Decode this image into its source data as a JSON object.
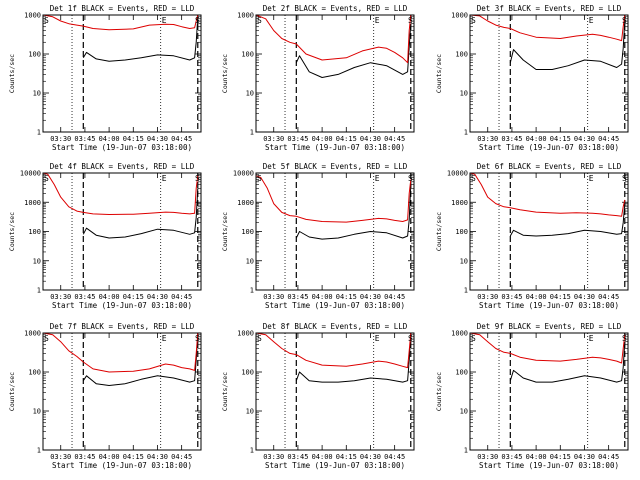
{
  "chart_data": [
    {
      "type": "line",
      "title": "Det 1f BLACK = Events, RED = LLD",
      "xlabel": "Start Time (19-Jun-07 03:18:00)",
      "ylabel": "Counts/sec",
      "yscale": "log",
      "ylim": [
        1,
        1000
      ],
      "xlim": [
        "03:19",
        "04:57"
      ],
      "xticks": [
        "03:30",
        "03:45",
        "04:00",
        "04:15",
        "04:30",
        "04:45"
      ],
      "yticks": [
        "1",
        "10",
        "100",
        "1000"
      ],
      "markers": {
        "S_left": "S",
        "E": "E",
        "S_right": "S"
      },
      "dotted_lines": [
        "03:37",
        "04:32"
      ],
      "dashed_lines": [
        "03:44",
        "04:55"
      ],
      "legend": "none",
      "grid": false,
      "series": [
        {
          "name": "BLACK",
          "color": "#000000",
          "x": [
            "03:44",
            "03:46",
            "03:52",
            "04:00",
            "04:10",
            "04:20",
            "04:30",
            "04:40",
            "04:50",
            "04:53",
            "04:54",
            "04:55"
          ],
          "y": [
            80,
            110,
            75,
            65,
            70,
            80,
            95,
            90,
            70,
            80,
            200,
            900
          ]
        },
        {
          "name": "RED",
          "color": "#dd0000",
          "x": [
            "03:19",
            "03:25",
            "03:30",
            "03:35",
            "03:40",
            "03:44",
            "03:50",
            "04:00",
            "04:15",
            "04:25",
            "04:35",
            "04:40",
            "04:45",
            "04:50",
            "04:53",
            "04:54",
            "04:55"
          ],
          "y": [
            1000,
            900,
            700,
            600,
            550,
            520,
            450,
            420,
            440,
            550,
            580,
            570,
            500,
            450,
            470,
            700,
            1000
          ]
        }
      ]
    },
    {
      "type": "line",
      "title": "Det 2f BLACK = Events, RED = LLD",
      "xlabel": "Start Time (19-Jun-07 03:18:00)",
      "ylabel": "Counts/sec",
      "yscale": "log",
      "ylim": [
        1,
        1000
      ],
      "xlim": [
        "03:19",
        "04:57"
      ],
      "xticks": [
        "03:30",
        "03:45",
        "04:00",
        "04:15",
        "04:30",
        "04:45"
      ],
      "yticks": [
        "1",
        "10",
        "100",
        "1000"
      ],
      "markers": {
        "S_left": "S",
        "E": "E",
        "S_right": "S"
      },
      "dotted_lines": [
        "03:37",
        "04:32"
      ],
      "dashed_lines": [
        "03:44",
        "04:55"
      ],
      "legend": "none",
      "grid": false,
      "series": [
        {
          "name": "BLACK",
          "color": "#000000",
          "x": [
            "03:44",
            "03:46",
            "03:52",
            "04:00",
            "04:10",
            "04:20",
            "04:30",
            "04:40",
            "04:50",
            "04:53",
            "04:54",
            "04:55"
          ],
          "y": [
            60,
            90,
            35,
            25,
            30,
            45,
            60,
            50,
            30,
            35,
            150,
            600
          ]
        },
        {
          "name": "RED",
          "color": "#dd0000",
          "x": [
            "03:19",
            "03:25",
            "03:30",
            "03:35",
            "03:40",
            "03:44",
            "03:50",
            "04:00",
            "04:15",
            "04:25",
            "04:35",
            "04:40",
            "04:45",
            "04:50",
            "04:53",
            "04:54",
            "04:55"
          ],
          "y": [
            1000,
            800,
            400,
            250,
            200,
            180,
            100,
            70,
            80,
            120,
            150,
            140,
            110,
            80,
            60,
            400,
            1000
          ]
        }
      ]
    },
    {
      "type": "line",
      "title": "Det 3f BLACK = Events, RED = LLD",
      "xlabel": "Start Time (19-Jun-07 03:18:00)",
      "ylabel": "Counts/sec",
      "yscale": "log",
      "ylim": [
        1,
        1000
      ],
      "xlim": [
        "03:19",
        "04:57"
      ],
      "xticks": [
        "03:30",
        "03:45",
        "04:00",
        "04:15",
        "04:30",
        "04:45"
      ],
      "yticks": [
        "1",
        "10",
        "100",
        "1000"
      ],
      "markers": {
        "S_left": "S",
        "E": "E",
        "S_right": "S"
      },
      "dotted_lines": [
        "03:37",
        "04:32"
      ],
      "dashed_lines": [
        "03:44",
        "04:55"
      ],
      "legend": "none",
      "grid": false,
      "series": [
        {
          "name": "BLACK",
          "color": "#000000",
          "x": [
            "03:44",
            "03:46",
            "03:52",
            "04:00",
            "04:10",
            "04:20",
            "04:30",
            "04:40",
            "04:50",
            "04:53",
            "04:54",
            "04:55"
          ],
          "y": [
            60,
            130,
            70,
            40,
            40,
            50,
            70,
            65,
            45,
            55,
            140,
            700
          ]
        },
        {
          "name": "RED",
          "color": "#dd0000",
          "x": [
            "03:19",
            "03:25",
            "03:30",
            "03:35",
            "03:40",
            "03:44",
            "03:50",
            "04:00",
            "04:15",
            "04:25",
            "04:35",
            "04:40",
            "04:45",
            "04:50",
            "04:53",
            "04:54",
            "04:55"
          ],
          "y": [
            1000,
            950,
            700,
            550,
            480,
            450,
            350,
            270,
            250,
            290,
            320,
            300,
            270,
            240,
            220,
            500,
            1000
          ]
        }
      ]
    },
    {
      "type": "line",
      "title": "Det 4f BLACK = Events, RED = LLD",
      "xlabel": "Start Time (19-Jun-07 03:18:00)",
      "ylabel": "Counts/sec",
      "yscale": "log",
      "ylim": [
        1,
        10000
      ],
      "xlim": [
        "03:19",
        "04:57"
      ],
      "xticks": [
        "03:30",
        "03:45",
        "04:00",
        "04:15",
        "04:30",
        "04:45"
      ],
      "yticks": [
        "1",
        "10",
        "100",
        "1000",
        "10000"
      ],
      "markers": {
        "S_left": "S",
        "E": "E",
        "S_right": "S"
      },
      "dotted_lines": [
        "03:37",
        "04:32"
      ],
      "dashed_lines": [
        "03:44",
        "04:55"
      ],
      "legend": "none",
      "grid": false,
      "series": [
        {
          "name": "BLACK",
          "color": "#000000",
          "x": [
            "03:44",
            "03:46",
            "03:52",
            "04:00",
            "04:10",
            "04:20",
            "04:30",
            "04:40",
            "04:50",
            "04:53",
            "04:54",
            "04:55"
          ],
          "y": [
            80,
            130,
            75,
            60,
            65,
            85,
            120,
            110,
            80,
            90,
            300,
            3000
          ]
        },
        {
          "name": "RED",
          "color": "#dd0000",
          "x": [
            "03:19",
            "03:22",
            "03:26",
            "03:30",
            "03:35",
            "03:40",
            "03:44",
            "03:50",
            "04:00",
            "04:15",
            "04:25",
            "04:35",
            "04:40",
            "04:45",
            "04:50",
            "04:53",
            "04:54",
            "04:55"
          ],
          "y": [
            10000,
            9000,
            4000,
            1500,
            700,
            500,
            450,
            400,
            380,
            390,
            420,
            460,
            450,
            420,
            400,
            420,
            3000,
            8000
          ]
        }
      ]
    },
    {
      "type": "line",
      "title": "Det 5f BLACK = Events, RED = LLD",
      "xlabel": "Start Time (19-Jun-07 03:18:00)",
      "ylabel": "Counts/sec",
      "yscale": "log",
      "ylim": [
        1,
        10000
      ],
      "xlim": [
        "03:19",
        "04:57"
      ],
      "xticks": [
        "03:30",
        "03:45",
        "04:00",
        "04:15",
        "04:30",
        "04:45"
      ],
      "yticks": [
        "1",
        "10",
        "100",
        "1000",
        "10000"
      ],
      "markers": {
        "S_left": "S",
        "E": "E",
        "S_right": "S"
      },
      "dotted_lines": [
        "03:37",
        "04:32"
      ],
      "dashed_lines": [
        "03:44",
        "04:55"
      ],
      "legend": "none",
      "grid": false,
      "series": [
        {
          "name": "BLACK",
          "color": "#000000",
          "x": [
            "03:44",
            "03:46",
            "03:52",
            "04:00",
            "04:10",
            "04:20",
            "04:30",
            "04:40",
            "04:50",
            "04:53",
            "04:54",
            "04:55"
          ],
          "y": [
            60,
            100,
            65,
            55,
            60,
            80,
            100,
            90,
            60,
            70,
            250,
            4000
          ]
        },
        {
          "name": "RED",
          "color": "#dd0000",
          "x": [
            "03:19",
            "03:22",
            "03:26",
            "03:30",
            "03:35",
            "03:40",
            "03:44",
            "03:50",
            "04:00",
            "04:15",
            "04:25",
            "04:35",
            "04:40",
            "04:45",
            "04:50",
            "04:53",
            "04:54",
            "04:55"
          ],
          "y": [
            8000,
            7000,
            3000,
            900,
            450,
            350,
            330,
            260,
            220,
            210,
            240,
            280,
            270,
            240,
            220,
            250,
            2000,
            6000
          ]
        }
      ]
    },
    {
      "type": "line",
      "title": "Det 6f BLACK = Events, RED = LLD",
      "xlabel": "Start Time (19-Jun-07 03:18:00)",
      "ylabel": "Counts/sec",
      "yscale": "log",
      "ylim": [
        1,
        10000
      ],
      "xlim": [
        "03:19",
        "04:57"
      ],
      "xticks": [
        "03:30",
        "03:45",
        "04:00",
        "04:15",
        "04:30",
        "04:45"
      ],
      "yticks": [
        "1",
        "10",
        "100",
        "1000",
        "10000"
      ],
      "markers": {
        "S_left": "S",
        "E": "E",
        "S_right": "S"
      },
      "dotted_lines": [
        "03:37",
        "04:32"
      ],
      "dashed_lines": [
        "03:44",
        "04:55"
      ],
      "legend": "none",
      "grid": false,
      "series": [
        {
          "name": "BLACK",
          "color": "#000000",
          "x": [
            "03:44",
            "03:46",
            "03:52",
            "04:00",
            "04:10",
            "04:20",
            "04:30",
            "04:40",
            "04:50",
            "04:53",
            "04:54",
            "04:55"
          ],
          "y": [
            70,
            110,
            75,
            70,
            75,
            85,
            110,
            100,
            80,
            85,
            200,
            900
          ]
        },
        {
          "name": "RED",
          "color": "#dd0000",
          "x": [
            "03:19",
            "03:22",
            "03:26",
            "03:30",
            "03:35",
            "03:40",
            "03:44",
            "03:50",
            "04:00",
            "04:15",
            "04:25",
            "04:35",
            "04:40",
            "04:45",
            "04:50",
            "04:53",
            "04:54",
            "04:55"
          ],
          "y": [
            10000,
            9000,
            4000,
            1500,
            900,
            700,
            650,
            550,
            460,
            420,
            440,
            420,
            400,
            370,
            350,
            330,
            700,
            1200
          ]
        }
      ]
    },
    {
      "type": "line",
      "title": "Det 7f BLACK = Events, RED = LLD",
      "xlabel": "Start Time (19-Jun-07 03:18:00)",
      "ylabel": "Counts/sec",
      "yscale": "log",
      "ylim": [
        1,
        1000
      ],
      "xlim": [
        "03:19",
        "04:57"
      ],
      "xticks": [
        "03:30",
        "03:45",
        "04:00",
        "04:15",
        "04:30",
        "04:45"
      ],
      "yticks": [
        "1",
        "10",
        "100",
        "1000"
      ],
      "markers": {
        "S_left": "S",
        "E": "E",
        "S_right": "S"
      },
      "dotted_lines": [
        "03:37",
        "04:32"
      ],
      "dashed_lines": [
        "03:44",
        "04:55"
      ],
      "legend": "none",
      "grid": false,
      "series": [
        {
          "name": "BLACK",
          "color": "#000000",
          "x": [
            "03:44",
            "03:46",
            "03:52",
            "04:00",
            "04:10",
            "04:20",
            "04:30",
            "04:40",
            "04:50",
            "04:53",
            "04:54",
            "04:55"
          ],
          "y": [
            60,
            80,
            50,
            45,
            50,
            65,
            80,
            70,
            55,
            60,
            200,
            900
          ]
        },
        {
          "name": "RED",
          "color": "#dd0000",
          "x": [
            "03:19",
            "03:25",
            "03:30",
            "03:35",
            "03:40",
            "03:44",
            "03:50",
            "04:00",
            "04:15",
            "04:25",
            "04:35",
            "04:40",
            "04:45",
            "04:50",
            "04:53",
            "04:54",
            "04:55"
          ],
          "y": [
            1000,
            900,
            600,
            350,
            250,
            180,
            120,
            100,
            105,
            120,
            160,
            150,
            130,
            120,
            110,
            300,
            1000
          ]
        }
      ]
    },
    {
      "type": "line",
      "title": "Det 8f BLACK = Events, RED = LLD",
      "xlabel": "Start Time (19-Jun-07 03:18:00)",
      "ylabel": "Counts/sec",
      "yscale": "log",
      "ylim": [
        1,
        1000
      ],
      "xlim": [
        "03:19",
        "04:57"
      ],
      "xticks": [
        "03:30",
        "03:45",
        "04:00",
        "04:15",
        "04:30",
        "04:45"
      ],
      "yticks": [
        "1",
        "10",
        "100",
        "1000"
      ],
      "markers": {
        "S_left": "S",
        "E": "E",
        "S_right": "S"
      },
      "dotted_lines": [
        "03:37",
        "04:32"
      ],
      "dashed_lines": [
        "03:44",
        "04:55"
      ],
      "legend": "none",
      "grid": false,
      "series": [
        {
          "name": "BLACK",
          "color": "#000000",
          "x": [
            "03:44",
            "03:46",
            "03:52",
            "04:00",
            "04:10",
            "04:20",
            "04:30",
            "04:40",
            "04:50",
            "04:53",
            "04:54",
            "04:55"
          ],
          "y": [
            60,
            100,
            60,
            55,
            55,
            60,
            70,
            65,
            55,
            60,
            200,
            900
          ]
        },
        {
          "name": "RED",
          "color": "#dd0000",
          "x": [
            "03:19",
            "03:25",
            "03:30",
            "03:35",
            "03:40",
            "03:44",
            "03:50",
            "04:00",
            "04:15",
            "04:25",
            "04:35",
            "04:40",
            "04:45",
            "04:50",
            "04:53",
            "04:54",
            "04:55"
          ],
          "y": [
            1000,
            900,
            600,
            400,
            300,
            280,
            200,
            150,
            140,
            160,
            190,
            180,
            160,
            140,
            130,
            350,
            1000
          ]
        }
      ]
    },
    {
      "type": "line",
      "title": "Det 9f BLACK = Events, RED = LLD",
      "xlabel": "Start Time (19-Jun-07 03:18:00)",
      "ylabel": "Counts/sec",
      "yscale": "log",
      "ylim": [
        1,
        1000
      ],
      "xlim": [
        "03:19",
        "04:57"
      ],
      "xticks": [
        "03:30",
        "03:45",
        "04:00",
        "04:15",
        "04:30",
        "04:45"
      ],
      "yticks": [
        "1",
        "10",
        "100",
        "1000"
      ],
      "markers": {
        "S_left": "S",
        "E": "E",
        "S_right": "S"
      },
      "dotted_lines": [
        "03:37",
        "04:32"
      ],
      "dashed_lines": [
        "03:44",
        "04:55"
      ],
      "legend": "none",
      "grid": false,
      "series": [
        {
          "name": "BLACK",
          "color": "#000000",
          "x": [
            "03:44",
            "03:46",
            "03:52",
            "04:00",
            "04:10",
            "04:20",
            "04:30",
            "04:40",
            "04:50",
            "04:53",
            "04:54",
            "04:55"
          ],
          "y": [
            60,
            110,
            70,
            55,
            55,
            65,
            80,
            70,
            55,
            60,
            130,
            600
          ]
        },
        {
          "name": "RED",
          "color": "#dd0000",
          "x": [
            "03:19",
            "03:25",
            "03:30",
            "03:35",
            "03:40",
            "03:44",
            "03:50",
            "04:00",
            "04:15",
            "04:25",
            "04:35",
            "04:40",
            "04:45",
            "04:50",
            "04:53",
            "04:54",
            "04:55"
          ],
          "y": [
            1000,
            900,
            600,
            400,
            320,
            300,
            240,
            200,
            190,
            210,
            240,
            230,
            210,
            190,
            170,
            400,
            900
          ]
        }
      ]
    }
  ]
}
